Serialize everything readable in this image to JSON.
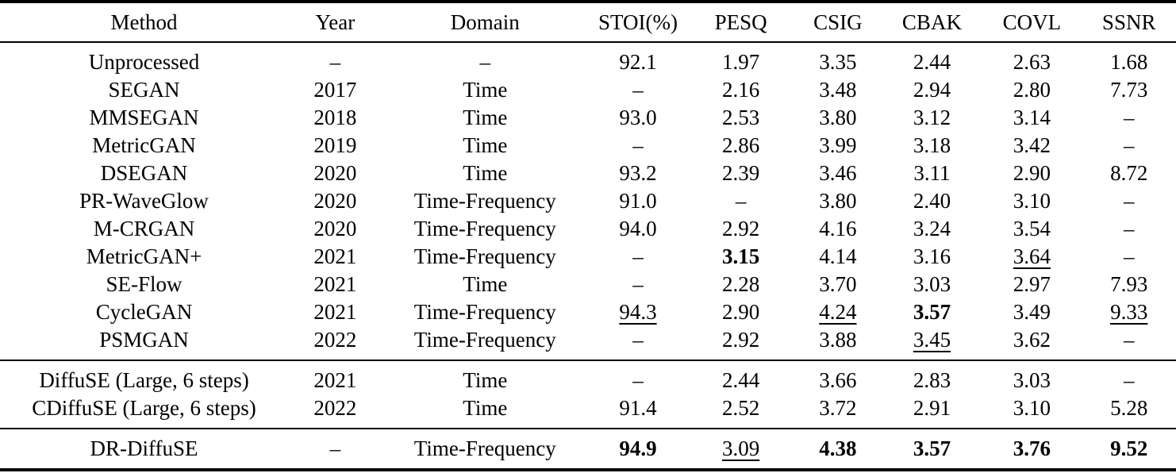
{
  "colors": {
    "text": "#000000",
    "background": "#ffffff",
    "rule": "#000000"
  },
  "table": {
    "columns": [
      {
        "key": "method",
        "label": "Method"
      },
      {
        "key": "year",
        "label": "Year"
      },
      {
        "key": "domain",
        "label": "Domain"
      },
      {
        "key": "stoi",
        "label": "STOI(%)"
      },
      {
        "key": "pesq",
        "label": "PESQ"
      },
      {
        "key": "csig",
        "label": "CSIG"
      },
      {
        "key": "cbak",
        "label": "CBAK"
      },
      {
        "key": "covl",
        "label": "COVL"
      },
      {
        "key": "ssnr",
        "label": "SSNR"
      }
    ],
    "sections": [
      {
        "name": "baselines",
        "rows": [
          {
            "cells": [
              {
                "text": "Unprocessed"
              },
              {
                "text": "–"
              },
              {
                "text": "–"
              },
              {
                "text": "92.1"
              },
              {
                "text": "1.97"
              },
              {
                "text": "3.35"
              },
              {
                "text": "2.44"
              },
              {
                "text": "2.63"
              },
              {
                "text": "1.68"
              }
            ]
          },
          {
            "cells": [
              {
                "text": "SEGAN"
              },
              {
                "text": "2017"
              },
              {
                "text": "Time"
              },
              {
                "text": "–"
              },
              {
                "text": "2.16"
              },
              {
                "text": "3.48"
              },
              {
                "text": "2.94"
              },
              {
                "text": "2.80"
              },
              {
                "text": "7.73"
              }
            ]
          },
          {
            "cells": [
              {
                "text": "MMSEGAN"
              },
              {
                "text": "2018"
              },
              {
                "text": "Time"
              },
              {
                "text": "93.0"
              },
              {
                "text": "2.53"
              },
              {
                "text": "3.80"
              },
              {
                "text": "3.12"
              },
              {
                "text": "3.14"
              },
              {
                "text": "–"
              }
            ]
          },
          {
            "cells": [
              {
                "text": "MetricGAN"
              },
              {
                "text": "2019"
              },
              {
                "text": "Time"
              },
              {
                "text": "–"
              },
              {
                "text": "2.86"
              },
              {
                "text": "3.99"
              },
              {
                "text": "3.18"
              },
              {
                "text": "3.42"
              },
              {
                "text": "–"
              }
            ]
          },
          {
            "cells": [
              {
                "text": "DSEGAN"
              },
              {
                "text": "2020"
              },
              {
                "text": "Time"
              },
              {
                "text": "93.2"
              },
              {
                "text": "2.39"
              },
              {
                "text": "3.46"
              },
              {
                "text": "3.11"
              },
              {
                "text": "2.90"
              },
              {
                "text": "8.72"
              }
            ]
          },
          {
            "cells": [
              {
                "text": "PR-WaveGlow"
              },
              {
                "text": "2020"
              },
              {
                "text": "Time-Frequency"
              },
              {
                "text": "91.0"
              },
              {
                "text": "–"
              },
              {
                "text": "3.80"
              },
              {
                "text": "2.40"
              },
              {
                "text": "3.10"
              },
              {
                "text": "–"
              }
            ]
          },
          {
            "cells": [
              {
                "text": "M-CRGAN"
              },
              {
                "text": "2020"
              },
              {
                "text": "Time-Frequency"
              },
              {
                "text": "94.0"
              },
              {
                "text": "2.92"
              },
              {
                "text": "4.16"
              },
              {
                "text": "3.24"
              },
              {
                "text": "3.54"
              },
              {
                "text": "–"
              }
            ]
          },
          {
            "cells": [
              {
                "text": "MetricGAN+"
              },
              {
                "text": "2021"
              },
              {
                "text": "Time-Frequency"
              },
              {
                "text": "–"
              },
              {
                "text": "3.15",
                "bold": true
              },
              {
                "text": "4.14"
              },
              {
                "text": "3.16"
              },
              {
                "text": "3.64",
                "underline": true
              },
              {
                "text": "–"
              }
            ]
          },
          {
            "cells": [
              {
                "text": "SE-Flow"
              },
              {
                "text": "2021"
              },
              {
                "text": "Time"
              },
              {
                "text": "–"
              },
              {
                "text": "2.28"
              },
              {
                "text": "3.70"
              },
              {
                "text": "3.03"
              },
              {
                "text": "2.97"
              },
              {
                "text": "7.93"
              }
            ]
          },
          {
            "cells": [
              {
                "text": "CycleGAN"
              },
              {
                "text": "2021"
              },
              {
                "text": "Time-Frequency"
              },
              {
                "text": "94.3",
                "underline": true
              },
              {
                "text": "2.90"
              },
              {
                "text": "4.24",
                "underline": true
              },
              {
                "text": "3.57",
                "bold": true
              },
              {
                "text": "3.49"
              },
              {
                "text": "9.33",
                "underline": true
              }
            ]
          },
          {
            "cells": [
              {
                "text": "PSMGAN"
              },
              {
                "text": "2022"
              },
              {
                "text": "Time-Frequency"
              },
              {
                "text": "–"
              },
              {
                "text": "2.92"
              },
              {
                "text": "3.88"
              },
              {
                "text": "3.45",
                "underline": true
              },
              {
                "text": "3.62"
              },
              {
                "text": "–"
              }
            ]
          }
        ]
      },
      {
        "name": "diffusion-baselines",
        "rows": [
          {
            "cells": [
              {
                "text": "DiffuSE (Large, 6 steps)"
              },
              {
                "text": "2021"
              },
              {
                "text": "Time"
              },
              {
                "text": "–"
              },
              {
                "text": "2.44"
              },
              {
                "text": "3.66"
              },
              {
                "text": "2.83"
              },
              {
                "text": "3.03"
              },
              {
                "text": "–"
              }
            ]
          },
          {
            "cells": [
              {
                "text": "CDiffuSE (Large, 6 steps)"
              },
              {
                "text": "2022"
              },
              {
                "text": "Time"
              },
              {
                "text": "91.4"
              },
              {
                "text": "2.52"
              },
              {
                "text": "3.72"
              },
              {
                "text": "2.91"
              },
              {
                "text": "3.10"
              },
              {
                "text": "5.28"
              }
            ]
          }
        ]
      },
      {
        "name": "proposed-method",
        "rows": [
          {
            "cells": [
              {
                "text": "DR-DiffuSE"
              },
              {
                "text": "–"
              },
              {
                "text": "Time-Frequency"
              },
              {
                "text": "94.9",
                "bold": true
              },
              {
                "text": "3.09",
                "underline": true
              },
              {
                "text": "4.38",
                "bold": true
              },
              {
                "text": "3.57",
                "bold": true
              },
              {
                "text": "3.76",
                "bold": true
              },
              {
                "text": "9.52",
                "bold": true
              }
            ]
          }
        ]
      }
    ]
  }
}
